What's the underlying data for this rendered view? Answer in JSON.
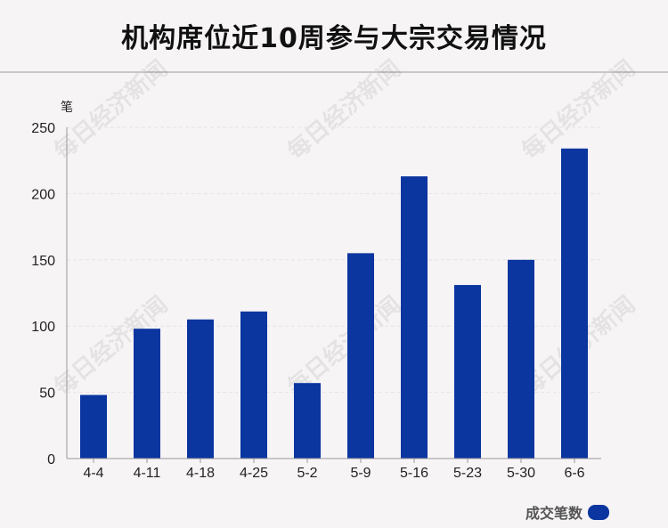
{
  "title": "机构席位近10周参与大宗交易情况",
  "watermark": "每日经济新闻",
  "colors": {
    "bar": "#0b36a0",
    "grid": "#e6e2e6",
    "axis": "#9a9a9a"
  },
  "chart_data": {
    "type": "bar",
    "categories": [
      "4-4",
      "4-11",
      "4-18",
      "4-25",
      "5-2",
      "5-9",
      "5-16",
      "5-23",
      "5-30",
      "6-6"
    ],
    "series": [
      {
        "name": "成交笔数",
        "values": [
          48,
          98,
          105,
          111,
          57,
          155,
          213,
          131,
          150,
          234
        ]
      }
    ],
    "ylabel": "笔",
    "ylim": [
      0,
      250
    ],
    "yticks": [
      0,
      50,
      100,
      150,
      200,
      250
    ],
    "grid": true,
    "legend_position": "bottom-right"
  }
}
